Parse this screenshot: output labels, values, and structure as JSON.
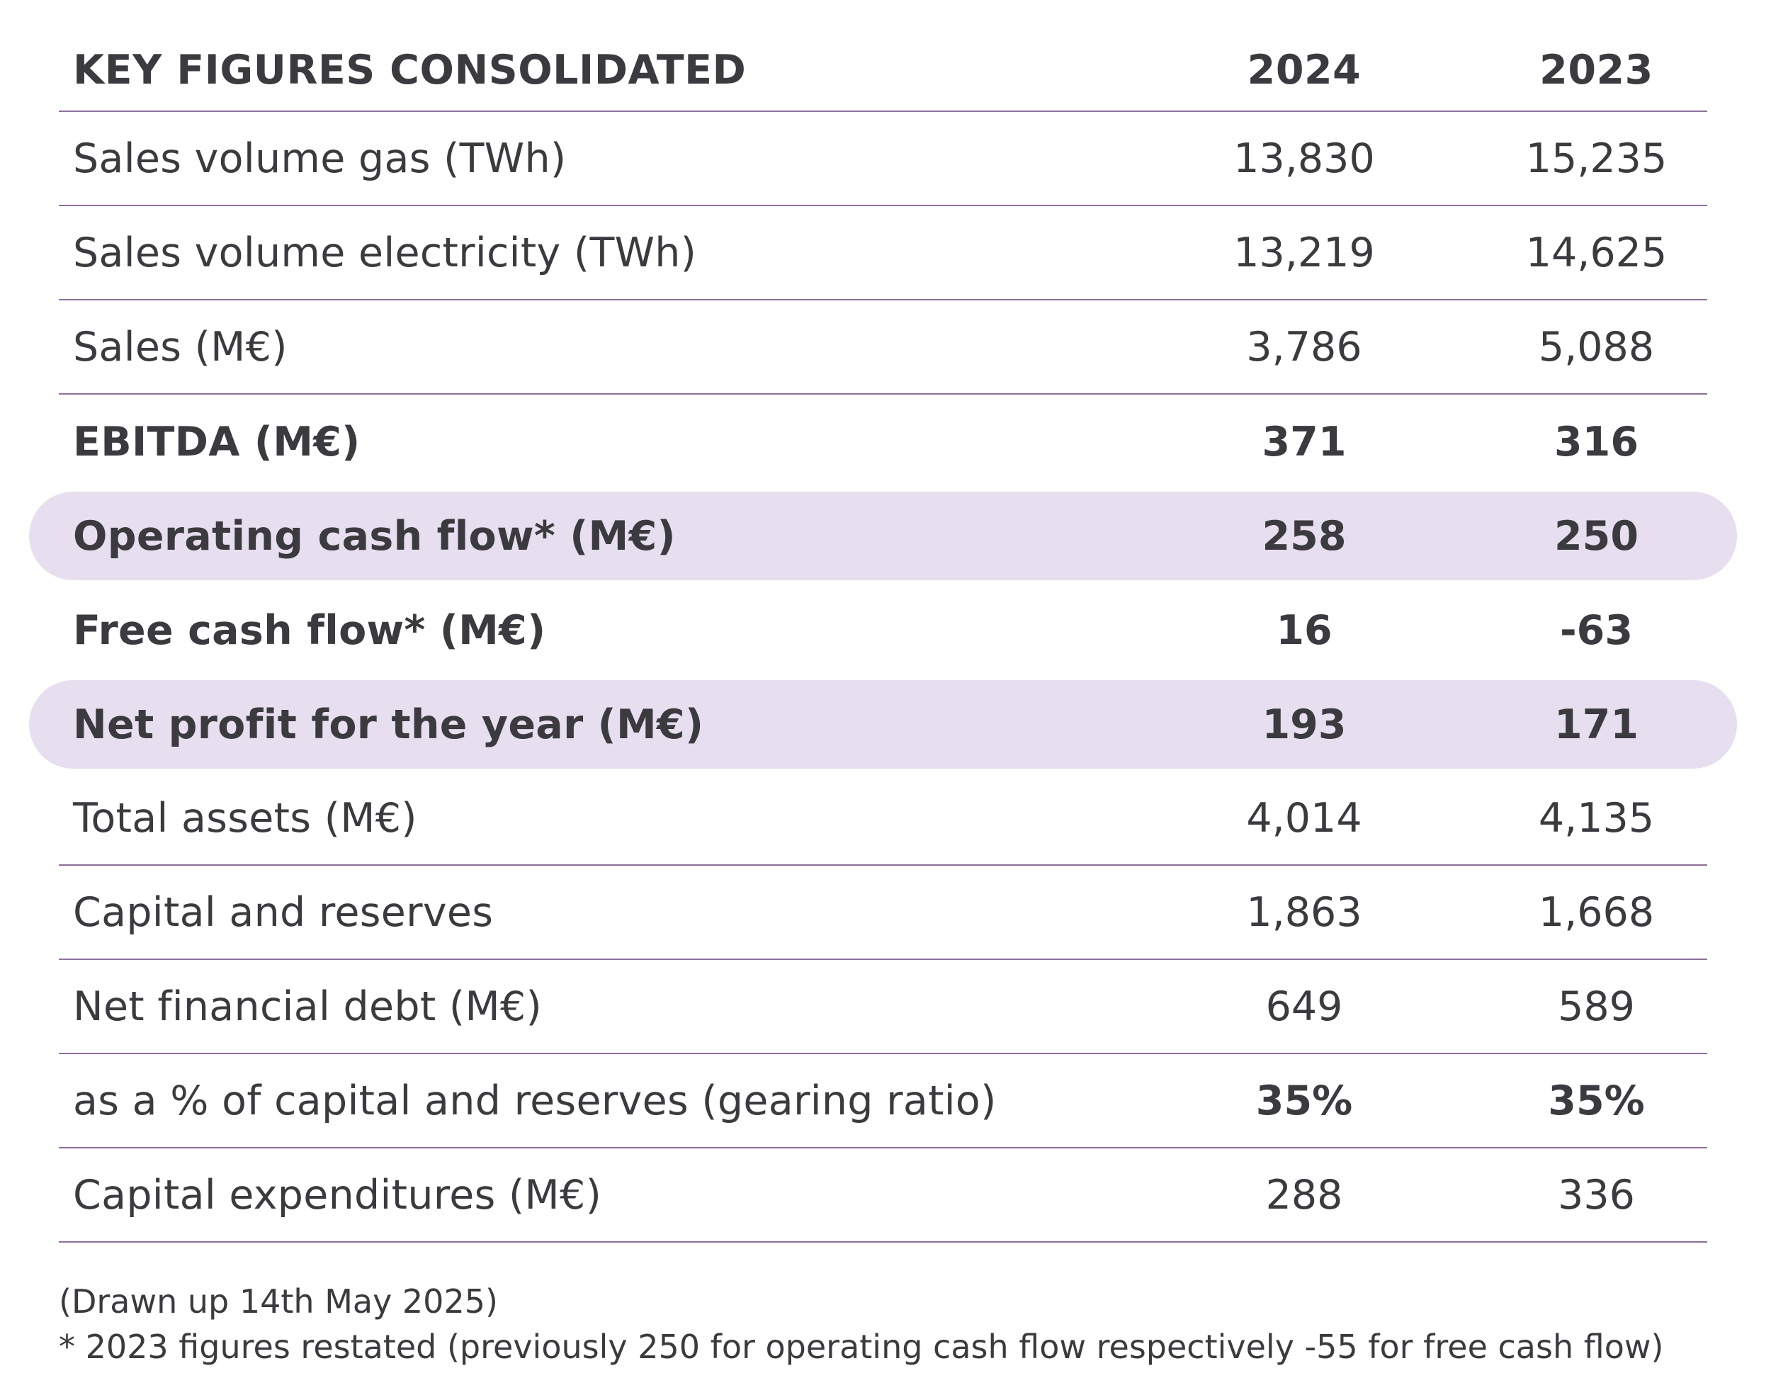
{
  "table": {
    "header": {
      "title": "KEY FIGURES CONSOLIDATED",
      "col_2024": "2024",
      "col_2023": "2023"
    },
    "rows": [
      {
        "label": "Sales volume gas (TWh)",
        "v2024": "13,830",
        "v2023": "15,235"
      },
      {
        "label": "Sales volume electricity (TWh)",
        "v2024": "13,219",
        "v2023": "14,625"
      },
      {
        "label": "Sales (M€)",
        "v2024": "3,786",
        "v2023": "5,088"
      },
      {
        "label": "EBITDA (M€)",
        "v2024": "371",
        "v2023": "316"
      },
      {
        "label": "Operating cash flow* (M€)",
        "v2024": "258",
        "v2023": "250"
      },
      {
        "label": "Free cash flow* (M€)",
        "v2024": "16",
        "v2023": "-63"
      },
      {
        "label": "Net profit for the year (M€)",
        "v2024": "193",
        "v2023": "171"
      },
      {
        "label": "Total assets (M€)",
        "v2024": "4,014",
        "v2023": "4,135"
      },
      {
        "label": "Capital and reserves",
        "v2024": "1,863",
        "v2023": "1,668"
      },
      {
        "label": "Net financial debt (M€)",
        "v2024": "649",
        "v2023": "589"
      },
      {
        "label": "as a % of capital and reserves (gearing ratio)",
        "v2024": "35%",
        "v2023": "35%"
      },
      {
        "label": "Capital expenditures (M€)",
        "v2024": "288",
        "v2023": "336"
      }
    ]
  },
  "notes": {
    "drawn_up": "(Drawn up 14th May 2025)",
    "restated": "* 2023 figures restated (previously 250 for operating cash flow respectively -55 for free cash flow)"
  },
  "colors": {
    "text": "#3a3a3f",
    "rule": "#8e6f9a",
    "highlight": "#e7deef"
  }
}
